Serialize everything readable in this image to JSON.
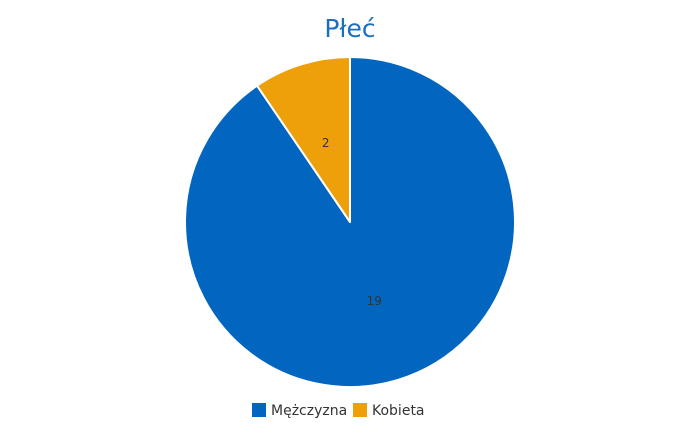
{
  "chart_data": {
    "type": "pie",
    "title": "Płeć",
    "categories": [
      "Mężczyzna",
      "Kobieta"
    ],
    "values": [
      19,
      2
    ],
    "data_labels": [
      "19",
      "2"
    ],
    "colors": [
      "#0266c1",
      "#eea00b"
    ],
    "title_color": "#1b6fbf",
    "start_angle": "12 o'clock",
    "direction": "clockwise",
    "legend": {
      "placement": "bottom-center",
      "items": [
        {
          "label": "Mężczyzna",
          "color": "#0266c1"
        },
        {
          "label": "Kobieta",
          "color": "#eea00b"
        }
      ]
    }
  }
}
